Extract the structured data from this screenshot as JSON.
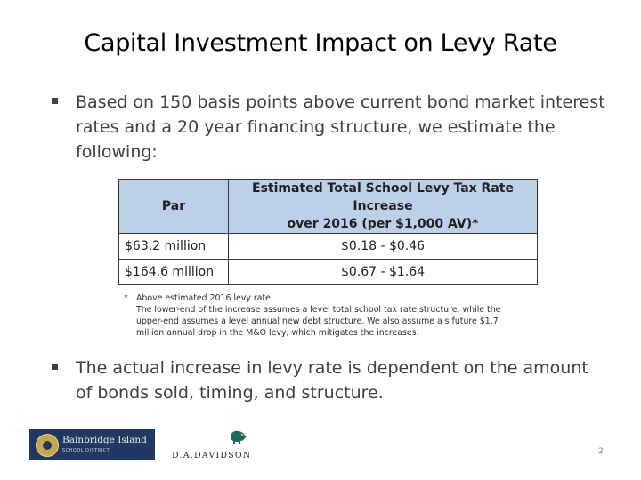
{
  "slide": {
    "title": "Capital Investment Impact on Levy Rate",
    "bullets": [
      "Based on 150 basis points above current bond market interest rates and a 20 year financing structure, we estimate the following:",
      "The actual increase in levy rate is dependent on the amount of bonds sold, timing, and structure."
    ],
    "table": {
      "header_par": "Par",
      "header_increase_line1": "Estimated Total School Levy Tax Rate Increase",
      "header_increase_line2": "over 2016 (per $1,000 AV)*",
      "rows": [
        {
          "par": "$63.2 million",
          "increase": "$0.18 - $0.46"
        },
        {
          "par": "$164.6 million",
          "increase": "$0.67 - $1.64"
        }
      ]
    },
    "footnote": {
      "marker": "*",
      "line1": "Above estimated 2016 levy rate",
      "body": "The lower-end of the increase assumes a level total school tax rate structure, while the upper-end assumes a level annual new debt structure. We also assume a s future $1.7 million annual drop in the M&O levy, which mitigates the increases."
    },
    "page_number": "2"
  },
  "logos": {
    "bainbridge_name": "Bainbridge Island",
    "bainbridge_sub": "SCHOOL DISTRICT",
    "davidson_name": "D.A.DAVIDSON"
  },
  "colors": {
    "table_header_fill": "#bdd0ea",
    "logo_navy": "#1f3864",
    "logo_gold": "#c9a848",
    "bison_green": "#1e6b5a"
  }
}
